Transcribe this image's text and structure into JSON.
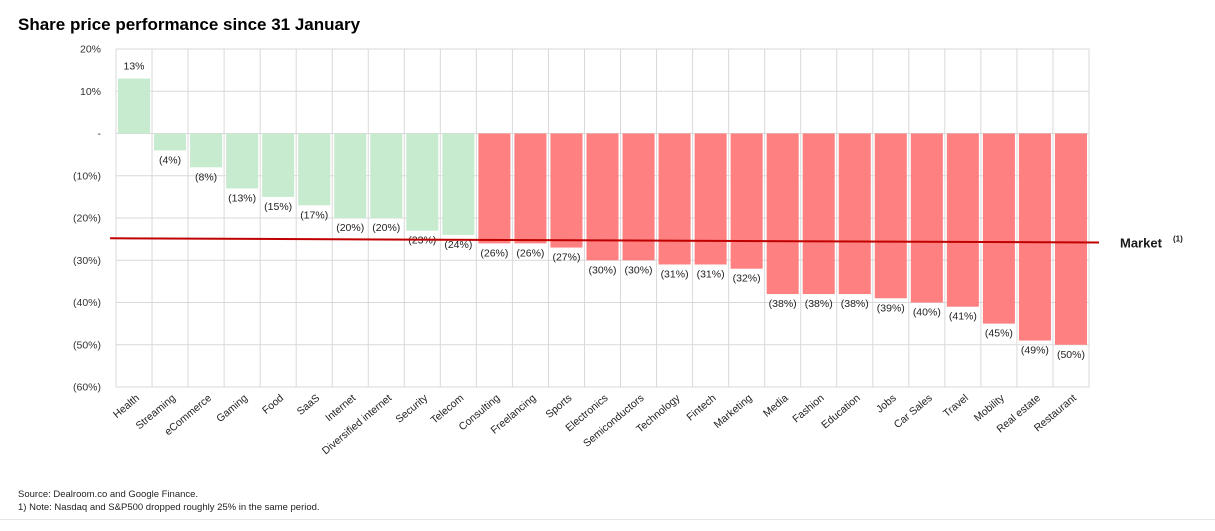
{
  "title": "Share price performance since 31 January",
  "footnotes": {
    "source": "Source: Dealroom.co and Google Finance.",
    "note": "1) Note: Nasdaq and S&P500 dropped roughly 25% in the same period."
  },
  "colors": {
    "positive_green": "#c6ebcf",
    "red_bar": "#ff8080",
    "market_line": "#c00000",
    "gridline": "#d9d9d9"
  },
  "chart_data": {
    "type": "bar",
    "title": "Share price performance since 31 January",
    "categories": [
      "Health",
      "Streaming",
      "eCommerce",
      "Gaming",
      "Food",
      "SaaS",
      "Internet",
      "Diversified internet",
      "Security",
      "Telecom",
      "Consulting",
      "Freelancing",
      "Sports",
      "Electronics",
      "Semiconductors",
      "Technology",
      "Fintech",
      "Marketing",
      "Media",
      "Fashion",
      "Education",
      "Jobs",
      "Car Sales",
      "Travel",
      "Mobility",
      "Real estate",
      "Restaurant"
    ],
    "values": [
      13,
      -4,
      -8,
      -13,
      -15,
      -17,
      -20,
      -20,
      -23,
      -24,
      -26,
      -26,
      -27,
      -30,
      -30,
      -31,
      -31,
      -32,
      -38,
      -38,
      -38,
      -39,
      -40,
      -41,
      -45,
      -49,
      -50
    ],
    "data_labels": [
      "13%",
      "(4%)",
      "(8%)",
      "(13%)",
      "(15%)",
      "(17%)",
      "(20%)",
      "(20%)",
      "(23%)",
      "(24%)",
      "(26%)",
      "(26%)",
      "(27%)",
      "(30%)",
      "(30%)",
      "(31%)",
      "(31%)",
      "(32%)",
      "(38%)",
      "(38%)",
      "(38%)",
      "(39%)",
      "(40%)",
      "(41%)",
      "(45%)",
      "(49%)",
      "(50%)"
    ],
    "bar_colors": [
      "green",
      "green",
      "green",
      "green",
      "green",
      "green",
      "green",
      "green",
      "green",
      "green",
      "red",
      "red",
      "red",
      "red",
      "red",
      "red",
      "red",
      "red",
      "red",
      "red",
      "red",
      "red",
      "red",
      "red",
      "red",
      "red",
      "red"
    ],
    "ylim": [
      -60,
      20
    ],
    "yticks": [
      20,
      10,
      0,
      -10,
      -20,
      -30,
      -40,
      -50,
      -60
    ],
    "ytick_labels": [
      "20%",
      "10%",
      "-",
      "(10%)",
      "(20%)",
      "(30%)",
      "(40%)",
      "(50%)",
      "(60%)"
    ],
    "reference_line": {
      "label": "Market",
      "superscript": "(1)",
      "start_value": -24.8,
      "end_value": -25.8
    },
    "grid": true,
    "xlabel": "",
    "ylabel": ""
  }
}
